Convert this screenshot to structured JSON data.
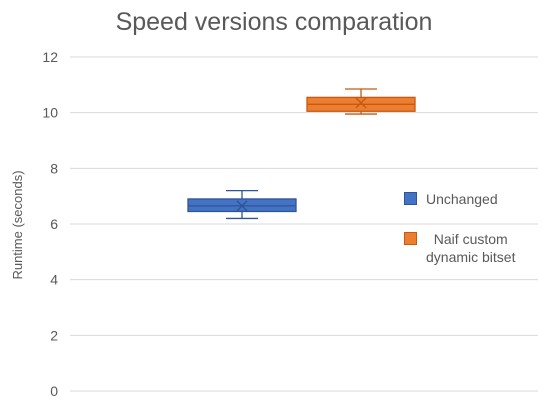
{
  "chart_data": {
    "type": "box",
    "title": "Speed versions comparation",
    "xlabel": "",
    "ylabel": "Runtime (seconds)",
    "ylim": [
      0,
      12
    ],
    "yticks": [
      0,
      2,
      4,
      6,
      8,
      10,
      12
    ],
    "grid": true,
    "legend_position": "right",
    "series": [
      {
        "name": "Unchanged",
        "color": "#4472C4",
        "stroke": "#2F5597",
        "min": 6.2,
        "q1": 6.45,
        "median": 6.65,
        "q3": 6.9,
        "max": 7.2,
        "mean": 6.65
      },
      {
        "name": "Naif custom dynamic bitset",
        "label_lines": [
          "Naif custom",
          "dynamic bitset"
        ],
        "color": "#ED7D31",
        "stroke": "#C55A11",
        "min": 9.95,
        "q1": 10.05,
        "median": 10.3,
        "q3": 10.55,
        "max": 10.85,
        "mean": 10.35
      }
    ]
  }
}
